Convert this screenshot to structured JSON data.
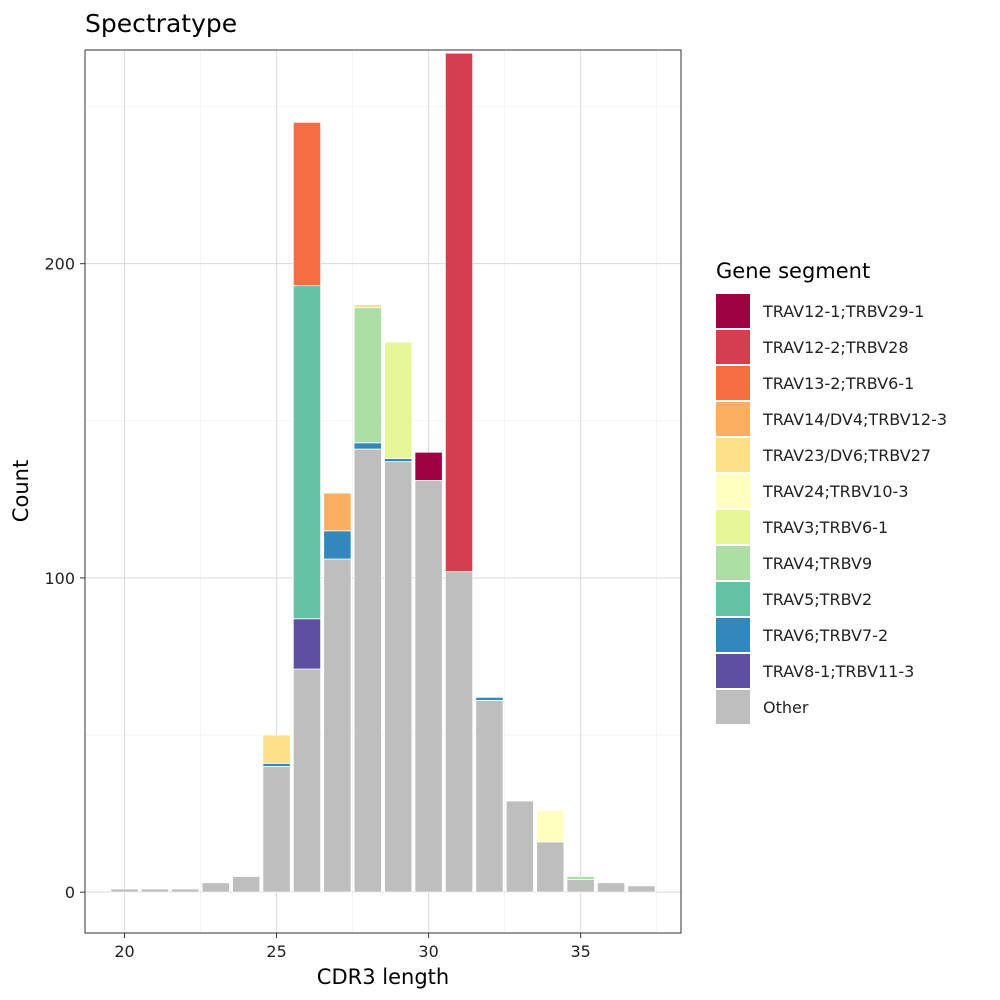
{
  "chart_data": {
    "type": "bar",
    "stacked": true,
    "title": "Spectratype",
    "xlabel": "CDR3 length",
    "ylabel": "Count",
    "xlim": [
      18.7,
      38.3
    ],
    "ylim": [
      -13,
      268
    ],
    "x_ticks": [
      20,
      25,
      30,
      35
    ],
    "y_ticks": [
      0,
      100,
      200
    ],
    "grid": true,
    "legend": {
      "title": "Gene segment",
      "position": "right"
    },
    "series": [
      {
        "name": "TRAV12-1;TRBV29-1",
        "color": "#9E0142"
      },
      {
        "name": "TRAV12-2;TRBV28",
        "color": "#D53E4F"
      },
      {
        "name": "TRAV13-2;TRBV6-1",
        "color": "#F46D43"
      },
      {
        "name": "TRAV14/DV4;TRBV12-3",
        "color": "#FDAE61"
      },
      {
        "name": "TRAV23/DV6;TRBV27",
        "color": "#FEE08B"
      },
      {
        "name": "TRAV24;TRBV10-3",
        "color": "#FFFFBF"
      },
      {
        "name": "TRAV3;TRBV6-1",
        "color": "#E6F598"
      },
      {
        "name": "TRAV4;TRBV9",
        "color": "#ABDDA4"
      },
      {
        "name": "TRAV5;TRBV2",
        "color": "#66C2A5"
      },
      {
        "name": "TRAV6;TRBV7-2",
        "color": "#3288BD"
      },
      {
        "name": "TRAV8-1;TRBV11-3",
        "color": "#5E4FA2"
      },
      {
        "name": "Other",
        "color": "#BEBEBE"
      }
    ],
    "bars": [
      {
        "x": 20,
        "stack": [
          {
            "series": "Other",
            "value": 1
          }
        ]
      },
      {
        "x": 21,
        "stack": [
          {
            "series": "Other",
            "value": 1
          }
        ]
      },
      {
        "x": 22,
        "stack": [
          {
            "series": "Other",
            "value": 1
          }
        ]
      },
      {
        "x": 23,
        "stack": [
          {
            "series": "Other",
            "value": 3
          }
        ]
      },
      {
        "x": 24,
        "stack": [
          {
            "series": "Other",
            "value": 5
          }
        ]
      },
      {
        "x": 25,
        "stack": [
          {
            "series": "Other",
            "value": 40
          },
          {
            "series": "TRAV6;TRBV7-2",
            "value": 1
          },
          {
            "series": "TRAV23/DV6;TRBV27",
            "value": 9
          }
        ]
      },
      {
        "x": 26,
        "stack": [
          {
            "series": "Other",
            "value": 71
          },
          {
            "series": "TRAV8-1;TRBV11-3",
            "value": 16
          },
          {
            "series": "TRAV5;TRBV2",
            "value": 106
          },
          {
            "series": "TRAV13-2;TRBV6-1",
            "value": 52
          }
        ]
      },
      {
        "x": 27,
        "stack": [
          {
            "series": "Other",
            "value": 106
          },
          {
            "series": "TRAV6;TRBV7-2",
            "value": 9
          },
          {
            "series": "TRAV14/DV4;TRBV12-3",
            "value": 12
          }
        ]
      },
      {
        "x": 28,
        "stack": [
          {
            "series": "Other",
            "value": 141
          },
          {
            "series": "TRAV6;TRBV7-2",
            "value": 2
          },
          {
            "series": "TRAV4;TRBV9",
            "value": 43
          },
          {
            "series": "TRAV23/DV6;TRBV27",
            "value": 1
          }
        ]
      },
      {
        "x": 29,
        "stack": [
          {
            "series": "Other",
            "value": 137
          },
          {
            "series": "TRAV6;TRBV7-2",
            "value": 1
          },
          {
            "series": "TRAV3;TRBV6-1",
            "value": 37
          }
        ]
      },
      {
        "x": 30,
        "stack": [
          {
            "series": "Other",
            "value": 131
          },
          {
            "series": "TRAV12-1;TRBV29-1",
            "value": 9
          }
        ]
      },
      {
        "x": 31,
        "stack": [
          {
            "series": "Other",
            "value": 102
          },
          {
            "series": "TRAV12-2;TRBV28",
            "value": 165
          }
        ]
      },
      {
        "x": 32,
        "stack": [
          {
            "series": "Other",
            "value": 61
          },
          {
            "series": "TRAV6;TRBV7-2",
            "value": 1
          }
        ]
      },
      {
        "x": 33,
        "stack": [
          {
            "series": "Other",
            "value": 29
          }
        ]
      },
      {
        "x": 34,
        "stack": [
          {
            "series": "Other",
            "value": 16
          },
          {
            "series": "TRAV24;TRBV10-3",
            "value": 10
          }
        ]
      },
      {
        "x": 35,
        "stack": [
          {
            "series": "Other",
            "value": 4
          },
          {
            "series": "TRAV4;TRBV9",
            "value": 1
          }
        ]
      },
      {
        "x": 36,
        "stack": [
          {
            "series": "Other",
            "value": 3
          }
        ]
      },
      {
        "x": 37,
        "stack": [
          {
            "series": "Other",
            "value": 2
          }
        ]
      }
    ]
  }
}
